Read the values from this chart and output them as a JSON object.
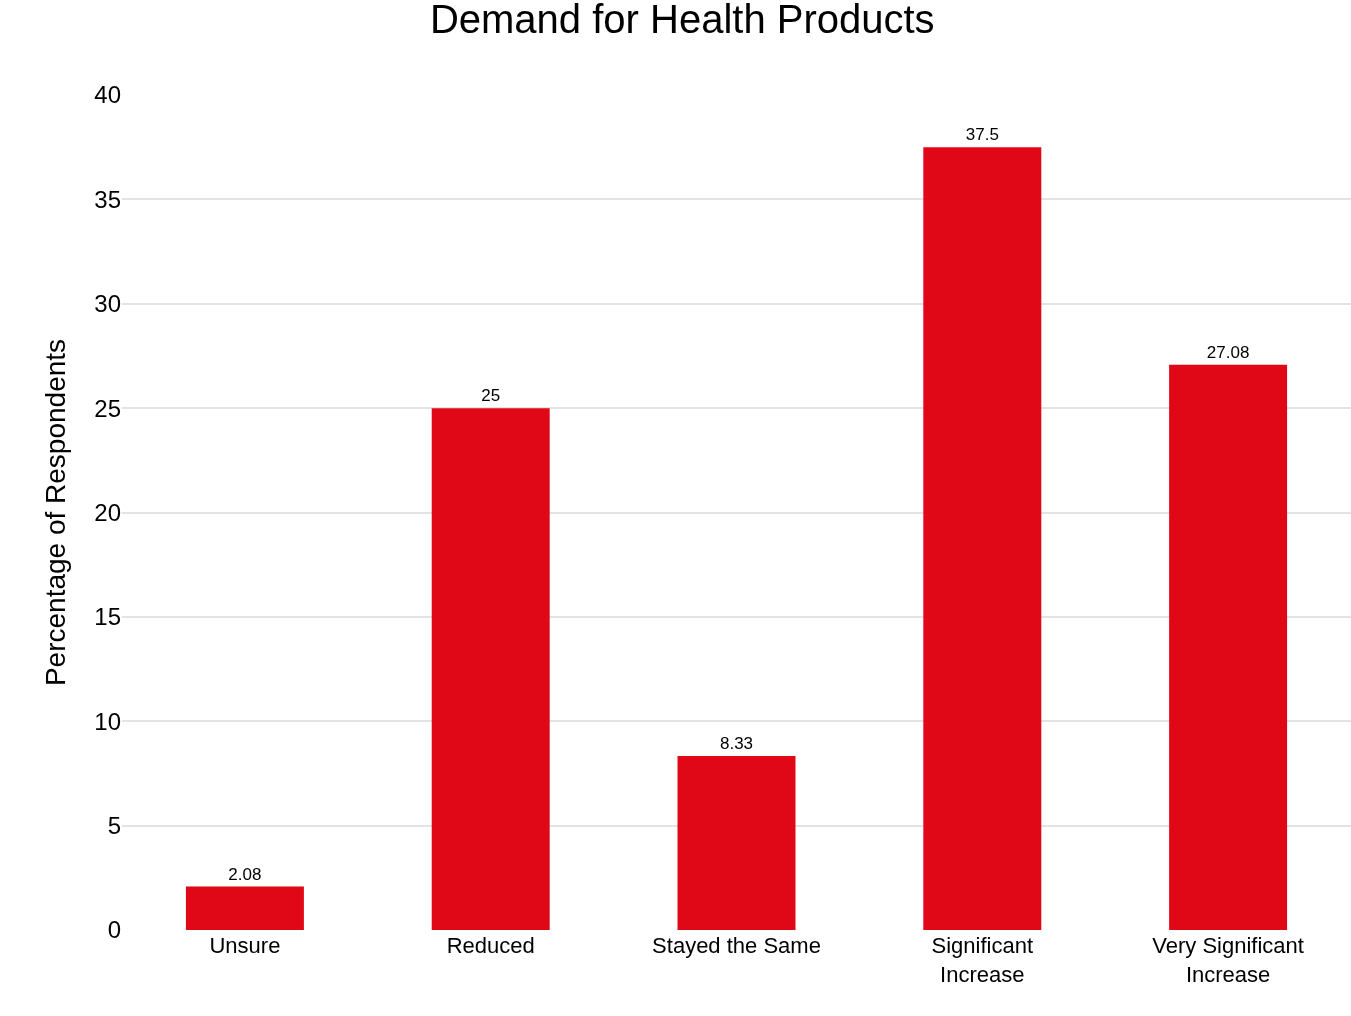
{
  "chart_data": {
    "type": "bar",
    "title": "Demand for Health Products",
    "ylabel": "Percentage of Respondents",
    "categories": [
      "Unsure",
      "Reduced",
      "Stayed the Same",
      "Significant Increase",
      "Very Significant Increase"
    ],
    "values": [
      2.08,
      25,
      8.33,
      37.5,
      27.08
    ],
    "color": "#e00816",
    "ylim": [
      0,
      40
    ],
    "yticks": [
      0,
      5,
      10,
      15,
      20,
      25,
      30,
      35,
      40
    ],
    "grid": "y",
    "data_labels": true,
    "legend": false
  }
}
